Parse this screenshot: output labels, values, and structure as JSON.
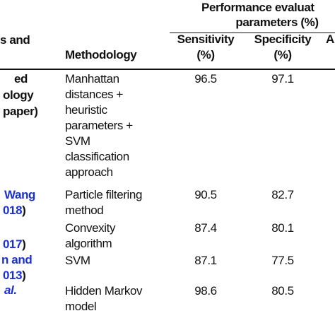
{
  "header": {
    "group_title": "Performance evaluat",
    "group_subtitle": "parameters (%)",
    "study": "s and",
    "methodology": "Methodology",
    "sensitivity": [
      "Sensitivity",
      "(%)"
    ],
    "specificity": [
      "Specificity",
      "(%)"
    ],
    "last": "A"
  },
  "rows": [
    {
      "study": [
        "ed",
        "ology",
        "paper)"
      ],
      "methodology": [
        "Manhattan",
        "distances +",
        "heuristic",
        "parameters +",
        "SVM",
        "classification",
        "approach"
      ],
      "sensitivity": 96.5,
      "specificity": 97.1
    },
    {
      "study": [
        [
          "Wang"
        ],
        [
          "018",
          ")"
        ]
      ],
      "methodology": [
        "Particle filtering",
        "method"
      ],
      "sensitivity": 90.5,
      "specificity": 82.7
    },
    {
      "study": [
        [
          "017",
          ")"
        ]
      ],
      "methodology": [
        "Convexity",
        "algorithm"
      ],
      "sensitivity": 87.4,
      "specificity": 80.1
    },
    {
      "study": [
        [
          "n and"
        ],
        [
          "013",
          ")"
        ]
      ],
      "methodology": [
        "SVM"
      ],
      "sensitivity": 87.1,
      "specificity": 77.5
    },
    {
      "study": [
        [
          "al."
        ]
      ],
      "methodology": [
        "Hidden Markov",
        "model"
      ],
      "sensitivity": 98.6,
      "specificity": 80.5
    }
  ]
}
